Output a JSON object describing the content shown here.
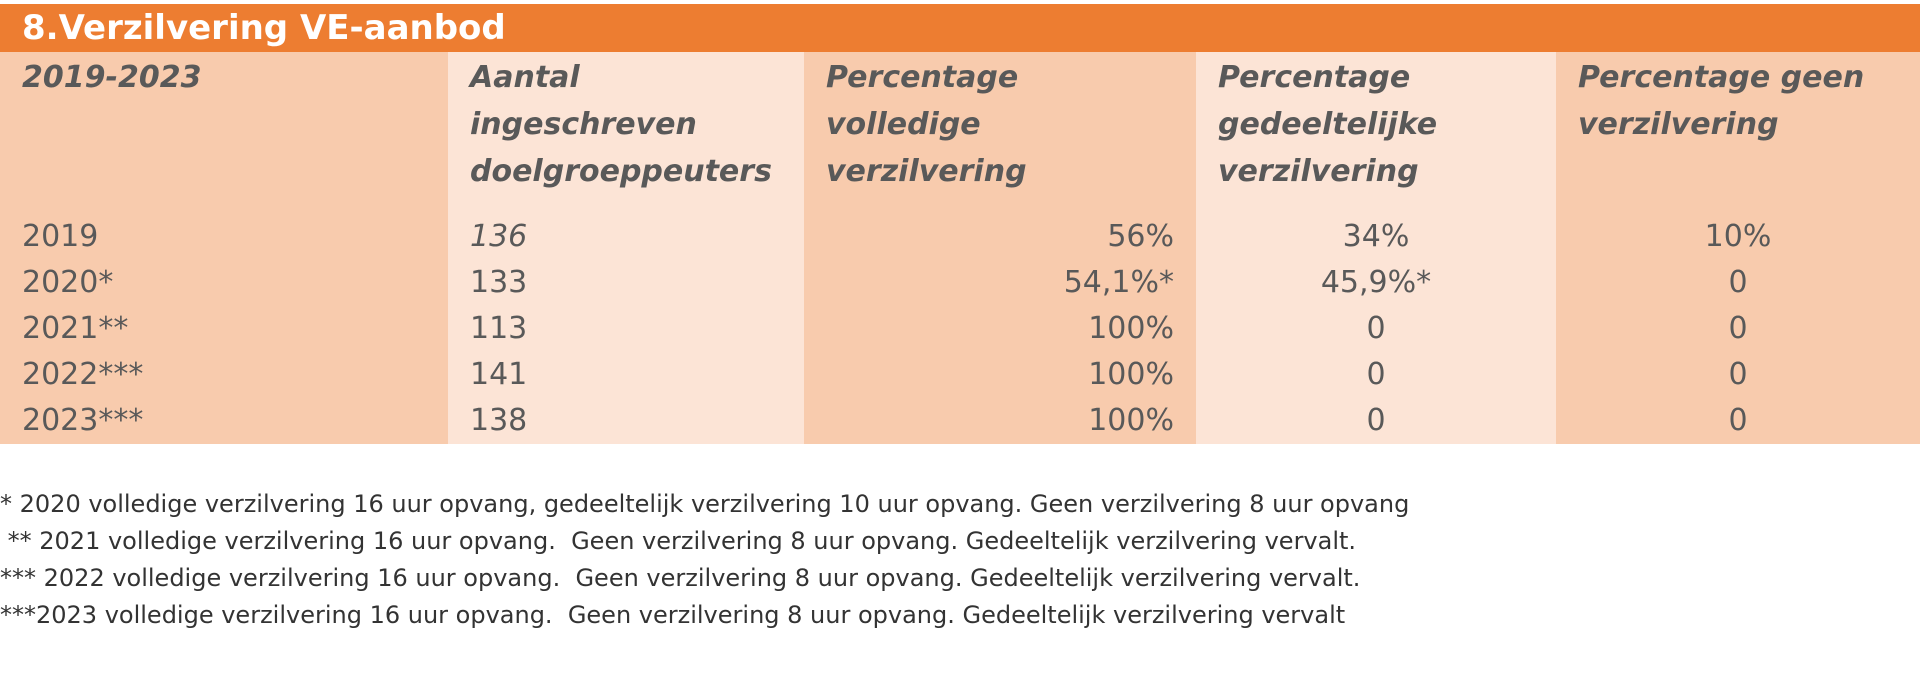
{
  "title": "8.Verzilvering VE-aanbod",
  "table": {
    "headers": [
      [
        "2019-2023"
      ],
      [
        "Aantal",
        "ingeschreven",
        "doelgroeppeuters"
      ],
      [
        "Percentage",
        "volledige",
        "verzilvering"
      ],
      [
        "Percentage",
        "gedeeltelijke",
        "verzilvering"
      ],
      [
        "Percentage geen",
        "verzilvering"
      ]
    ],
    "rows": [
      [
        "2019",
        "136",
        "56%",
        "34%",
        "10%"
      ],
      [
        "2020*",
        "133",
        "54,1%*",
        "45,9%*",
        "0"
      ],
      [
        "2021**",
        "113",
        "100%",
        "0",
        "0"
      ],
      [
        "2022***",
        "141",
        "100%",
        "0",
        "0"
      ],
      [
        "2023***",
        "138",
        "100%",
        "0",
        "0"
      ]
    ]
  },
  "notes": [
    "* 2020 volledige verzilvering 16 uur opvang, gedeeltelijk verzilvering 10 uur opvang. Geen verzilvering 8 uur opvang",
    " ** 2021 volledige verzilvering 16 uur opvang.  Geen verzilvering 8 uur opvang. Gedeeltelijk verzilvering vervalt.",
    "*** 2022 volledige verzilvering 16 uur opvang.  Geen verzilvering 8 uur opvang. Gedeeltelijk verzilvering vervalt.",
    "***2023 volledige verzilvering 16 uur opvang.  Geen verzilvering 8 uur opvang. Gedeeltelijk verzilvering vervalt"
  ],
  "colors": {
    "title_bg": "#ED7D31",
    "cell_dark": "#F8CBAD",
    "cell_light": "#FCE4D6"
  }
}
